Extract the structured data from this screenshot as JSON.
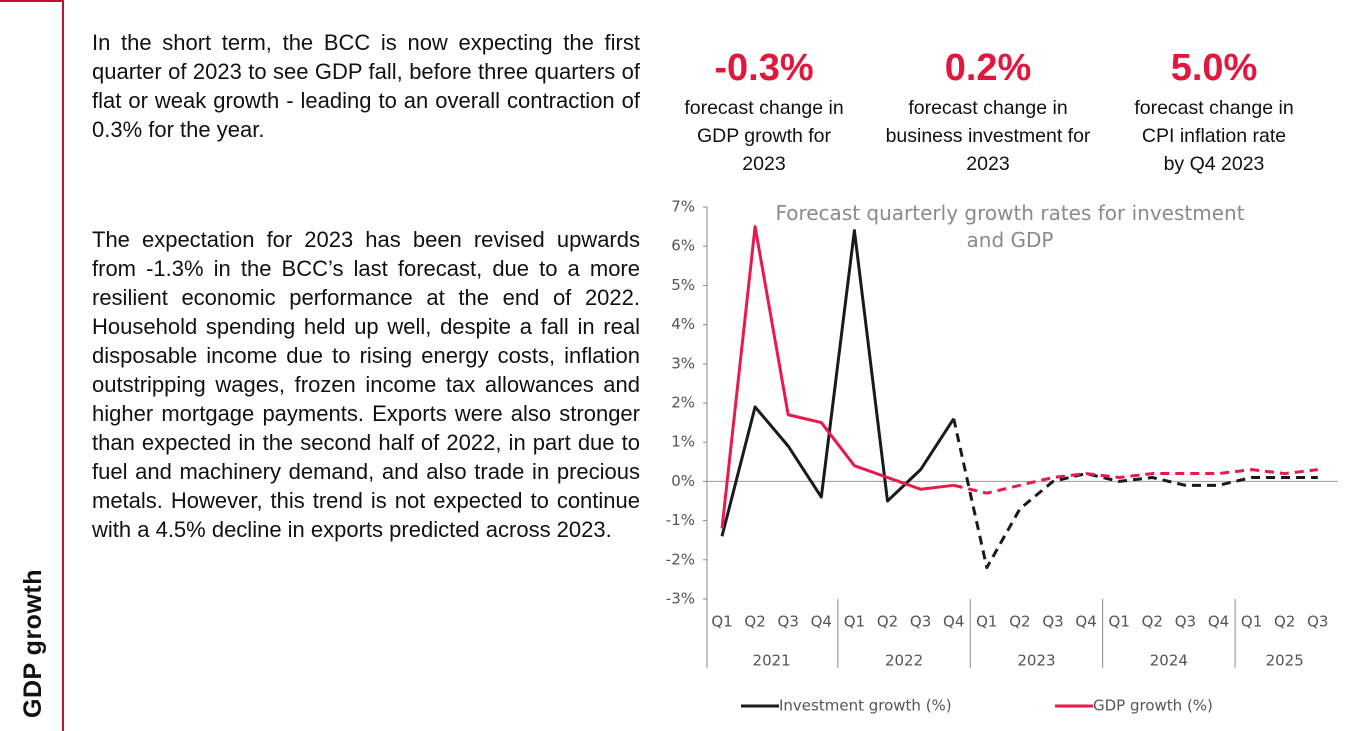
{
  "sidebar": {
    "label": "GDP growth"
  },
  "paragraphs": [
    "In the short term, the BCC is now expecting the first quarter of 2023 to see GDP fall, before three quarters of flat or weak growth - leading to an overall contraction of 0.3% for the year.",
    "The expectation for 2023 has been revised upwards from -1.3% in the BCC’s last forecast, due to a more resilient economic performance at the end of 2022. Household spending held up well, despite a fall in real disposable income due to rising energy costs, inflation outstripping wages, frozen income tax allowances and higher mortgage payments. Exports were also stronger than expected in the second half of 2022, in part due to fuel and machinery demand, and also trade in precious metals. However, this trend is not expected to continue with a 4.5% decline in exports predicted across 2023."
  ],
  "stats": [
    {
      "value": "-0.3%",
      "caption": "forecast change in GDP growth for 2023"
    },
    {
      "value": "0.2%",
      "caption": "forecast change in business investment for 2023"
    },
    {
      "value": "5.0%",
      "caption": "forecast change in CPI inflation rate by Q4 2023"
    }
  ],
  "chart_data": {
    "type": "line",
    "title": "Forecast quarterly growth rates for investment and GDP",
    "categories": [
      "Q1",
      "Q2",
      "Q3",
      "Q4",
      "Q1",
      "Q2",
      "Q3",
      "Q4",
      "Q1",
      "Q2",
      "Q3",
      "Q4",
      "Q1",
      "Q2",
      "Q3",
      "Q4",
      "Q1",
      "Q2",
      "Q3"
    ],
    "groups": [
      {
        "label": "2021",
        "count": 4
      },
      {
        "label": "2022",
        "count": 4
      },
      {
        "label": "2023",
        "count": 4
      },
      {
        "label": "2024",
        "count": 4
      },
      {
        "label": "2025",
        "count": 3
      }
    ],
    "dash_from_index": 7,
    "series": [
      {
        "name": "Investment growth (%)",
        "color": "#1a1a1a",
        "values": [
          -1.4,
          1.9,
          0.9,
          -0.4,
          6.4,
          -0.5,
          0.3,
          1.6,
          -2.2,
          -0.7,
          0.0,
          0.2,
          0.0,
          0.1,
          -0.1,
          -0.1,
          0.1,
          0.1,
          0.1
        ]
      },
      {
        "name": "GDP growth (%)",
        "color": "#e8194b",
        "values": [
          -1.2,
          6.5,
          1.7,
          1.5,
          0.4,
          0.1,
          -0.2,
          -0.1,
          -0.3,
          -0.1,
          0.1,
          0.2,
          0.1,
          0.2,
          0.2,
          0.2,
          0.3,
          0.2,
          0.3
        ]
      }
    ],
    "ylim": [
      -3,
      7
    ],
    "yticks": [
      {
        "value": 7,
        "label": "7%"
      },
      {
        "value": 6,
        "label": "6%"
      },
      {
        "value": 5,
        "label": "5%"
      },
      {
        "value": 4,
        "label": "4%"
      },
      {
        "value": 3,
        "label": "3%"
      },
      {
        "value": 2,
        "label": "2%"
      },
      {
        "value": 1,
        "label": "1%"
      },
      {
        "value": 0,
        "label": "0%"
      },
      {
        "value": -1,
        "label": "-1%"
      },
      {
        "value": -2,
        "label": "-2%"
      },
      {
        "value": -3,
        "label": "-3%"
      }
    ]
  }
}
